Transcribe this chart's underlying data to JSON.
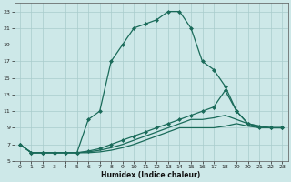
{
  "xlabel": "Humidex (Indice chaleur)",
  "background_color": "#cde8e8",
  "grid_color": "#a8cccc",
  "line_color": "#1a6b5a",
  "xlim": [
    -0.5,
    23.5
  ],
  "ylim": [
    5,
    24
  ],
  "yticks": [
    5,
    7,
    9,
    11,
    13,
    15,
    17,
    19,
    21,
    23
  ],
  "xticks": [
    0,
    1,
    2,
    3,
    4,
    5,
    6,
    7,
    8,
    9,
    10,
    11,
    12,
    13,
    14,
    15,
    16,
    17,
    18,
    19,
    20,
    21,
    22,
    23
  ],
  "curves": [
    {
      "x": [
        0,
        1,
        2,
        3,
        4,
        5,
        6,
        7,
        8,
        9,
        10,
        11,
        12,
        13,
        14,
        15,
        16,
        17,
        18,
        19,
        20,
        21,
        22,
        23
      ],
      "y": [
        7,
        6,
        6,
        6,
        6,
        6,
        10,
        11,
        17,
        19,
        21,
        21.5,
        22,
        23,
        23,
        21,
        17,
        16,
        14,
        11,
        9.5,
        9,
        9,
        9
      ],
      "marker": "D",
      "markersize": 2,
      "linewidth": 0.9,
      "has_markers": true
    },
    {
      "x": [
        0,
        1,
        2,
        3,
        4,
        5,
        6,
        7,
        8,
        9,
        10,
        11,
        12,
        13,
        14,
        15,
        16,
        17,
        18,
        19,
        20,
        21,
        22,
        23
      ],
      "y": [
        7,
        6,
        6,
        6,
        6,
        6,
        6.2,
        6.5,
        7,
        7.5,
        8,
        8.5,
        9,
        9.5,
        10,
        10.5,
        11,
        11.5,
        13.5,
        11,
        9.5,
        9.2,
        9,
        9
      ],
      "marker": "D",
      "markersize": 2,
      "linewidth": 0.9,
      "has_markers": true
    },
    {
      "x": [
        0,
        1,
        2,
        3,
        4,
        5,
        6,
        7,
        8,
        9,
        10,
        11,
        12,
        13,
        14,
        15,
        16,
        17,
        18,
        19,
        20,
        21,
        22,
        23
      ],
      "y": [
        7,
        6,
        6,
        6,
        6,
        6,
        6.1,
        6.3,
        6.6,
        7,
        7.5,
        8,
        8.5,
        9,
        9.5,
        10,
        10,
        10.2,
        10.5,
        10,
        9.5,
        9.2,
        9,
        9
      ],
      "marker": "D",
      "markersize": 2,
      "linewidth": 0.9,
      "has_markers": false
    },
    {
      "x": [
        0,
        1,
        2,
        3,
        4,
        5,
        6,
        7,
        8,
        9,
        10,
        11,
        12,
        13,
        14,
        15,
        16,
        17,
        18,
        19,
        20,
        21,
        22,
        23
      ],
      "y": [
        7,
        6,
        6,
        6,
        6,
        6,
        6.0,
        6.1,
        6.3,
        6.6,
        7,
        7.5,
        8,
        8.5,
        9,
        9,
        9,
        9,
        9.2,
        9.5,
        9.2,
        9,
        9,
        9
      ],
      "marker": "D",
      "markersize": 2,
      "linewidth": 0.9,
      "has_markers": false
    }
  ]
}
